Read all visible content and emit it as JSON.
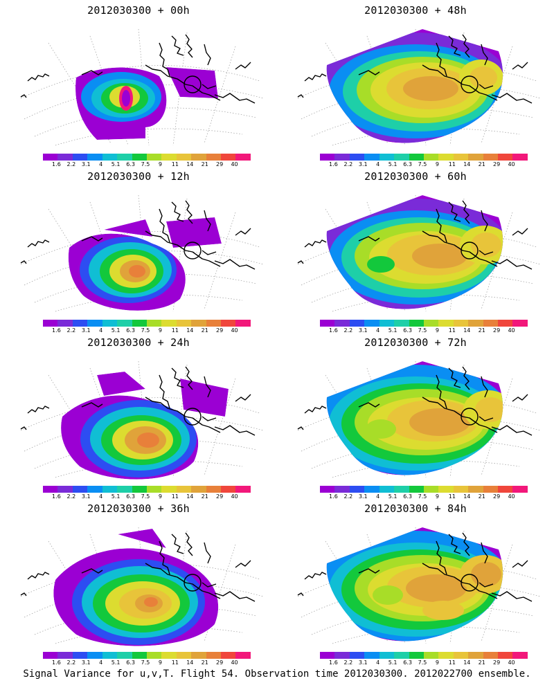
{
  "panels": [
    {
      "id": "p00",
      "title": "2012030300 + 00h"
    },
    {
      "id": "p48",
      "title": "2012030300 + 48h"
    },
    {
      "id": "p12",
      "title": "2012030300 + 12h"
    },
    {
      "id": "p60",
      "title": "2012030300 + 60h"
    },
    {
      "id": "p24",
      "title": "2012030300 + 24h"
    },
    {
      "id": "p72",
      "title": "2012030300 + 72h"
    },
    {
      "id": "p36",
      "title": "2012030300 + 36h"
    },
    {
      "id": "p84",
      "title": "2012030300 + 84h"
    }
  ],
  "colorbar": {
    "colors": [
      "#9b00d3",
      "#7a2bd8",
      "#2d4df2",
      "#0a8ef3",
      "#10bed4",
      "#1ecfa8",
      "#13c83c",
      "#a8dd28",
      "#dcdc30",
      "#e8c43a",
      "#e0a33a",
      "#e8803a",
      "#f0463c",
      "#f2187a"
    ],
    "labels": [
      "1.6",
      "2.2",
      "3.1",
      "4",
      "5.1",
      "6.3",
      "7.5",
      "9",
      "11",
      "14",
      "21",
      "29",
      "40"
    ]
  },
  "footer": "Signal Variance for u,v,T. Flight 54. Observation time 2012030300. 2012022700 ensemble."
}
